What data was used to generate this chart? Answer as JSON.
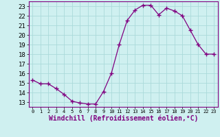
{
  "x": [
    0,
    1,
    2,
    3,
    4,
    5,
    6,
    7,
    8,
    9,
    10,
    11,
    12,
    13,
    14,
    15,
    16,
    17,
    18,
    19,
    20,
    21,
    22,
    23
  ],
  "y": [
    15.3,
    14.9,
    14.9,
    14.4,
    13.8,
    13.1,
    12.9,
    12.8,
    12.8,
    14.1,
    16.0,
    19.0,
    21.5,
    22.6,
    23.1,
    23.1,
    22.1,
    22.8,
    22.5,
    22.0,
    20.5,
    19.0,
    18.0,
    18.0
  ],
  "line_color": "#800080",
  "marker": "+",
  "marker_size": 4,
  "bg_color": "#cff0f0",
  "grid_color": "#aadada",
  "xlabel": "Windchill (Refroidissement éolien,°C)",
  "xlabel_fontsize": 7,
  "tick_fontsize": 6.5,
  "ylim": [
    12.5,
    23.5
  ],
  "xlim": [
    -0.5,
    23.5
  ],
  "yticks": [
    13,
    14,
    15,
    16,
    17,
    18,
    19,
    20,
    21,
    22,
    23
  ],
  "xticks": [
    0,
    1,
    2,
    3,
    4,
    5,
    6,
    7,
    8,
    9,
    10,
    11,
    12,
    13,
    14,
    15,
    16,
    17,
    18,
    19,
    20,
    21,
    22,
    23
  ]
}
